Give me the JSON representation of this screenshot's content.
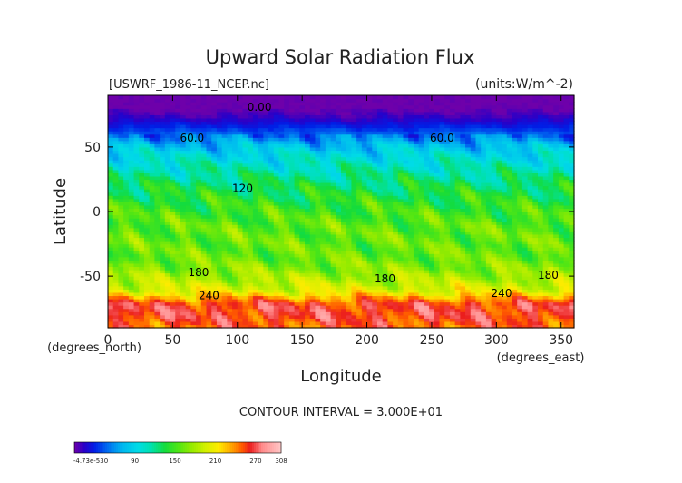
{
  "chart_data": {
    "type": "heatmap",
    "title": "Upward Solar Radiation Flux",
    "file_label": "[USWRF_1986-11_NCEP.nc]",
    "units_label": "(units:W/m^-2)",
    "xlabel": "Longitude",
    "ylabel": "Latitude",
    "x_unit_label": "(degrees_east)",
    "y_unit_label": "(degrees_north)",
    "xlim": [
      0,
      360
    ],
    "ylim": [
      -90,
      90
    ],
    "x_ticks": [
      0,
      50,
      100,
      150,
      200,
      250,
      300,
      350
    ],
    "y_ticks": [
      -50,
      0,
      50
    ],
    "contour_interval_text": "CONTOUR INTERVAL = 3.000E+01",
    "contour_labels": [
      {
        "text": "0.00",
        "lon": 117,
        "lat": 78
      },
      {
        "text": "60.0",
        "lon": 65,
        "lat": 54
      },
      {
        "text": "60.0",
        "lon": 258,
        "lat": 54
      },
      {
        "text": "120",
        "lon": 104,
        "lat": 15
      },
      {
        "text": "180",
        "lon": 70,
        "lat": -50
      },
      {
        "text": "180",
        "lon": 214,
        "lat": -55
      },
      {
        "text": "180",
        "lon": 340,
        "lat": -52
      },
      {
        "text": "240",
        "lon": 78,
        "lat": -68
      },
      {
        "text": "240",
        "lon": 304,
        "lat": -66
      }
    ],
    "zonal_profile": {
      "lat": [
        -90,
        -80,
        -72,
        -66,
        -62,
        -55,
        -45,
        -35,
        -20,
        -10,
        0,
        10,
        20,
        30,
        40,
        46,
        52,
        58,
        66,
        74,
        80,
        90
      ],
      "value": [
        250,
        262,
        262,
        232,
        205,
        188,
        172,
        162,
        160,
        158,
        150,
        140,
        130,
        115,
        100,
        90,
        75,
        55,
        30,
        10,
        0,
        0
      ]
    },
    "colorbar": {
      "min_label": "-4.73e-530",
      "tick_labels": [
        "90",
        "150",
        "210",
        "270",
        "308"
      ],
      "range": [
        0,
        308
      ]
    }
  }
}
